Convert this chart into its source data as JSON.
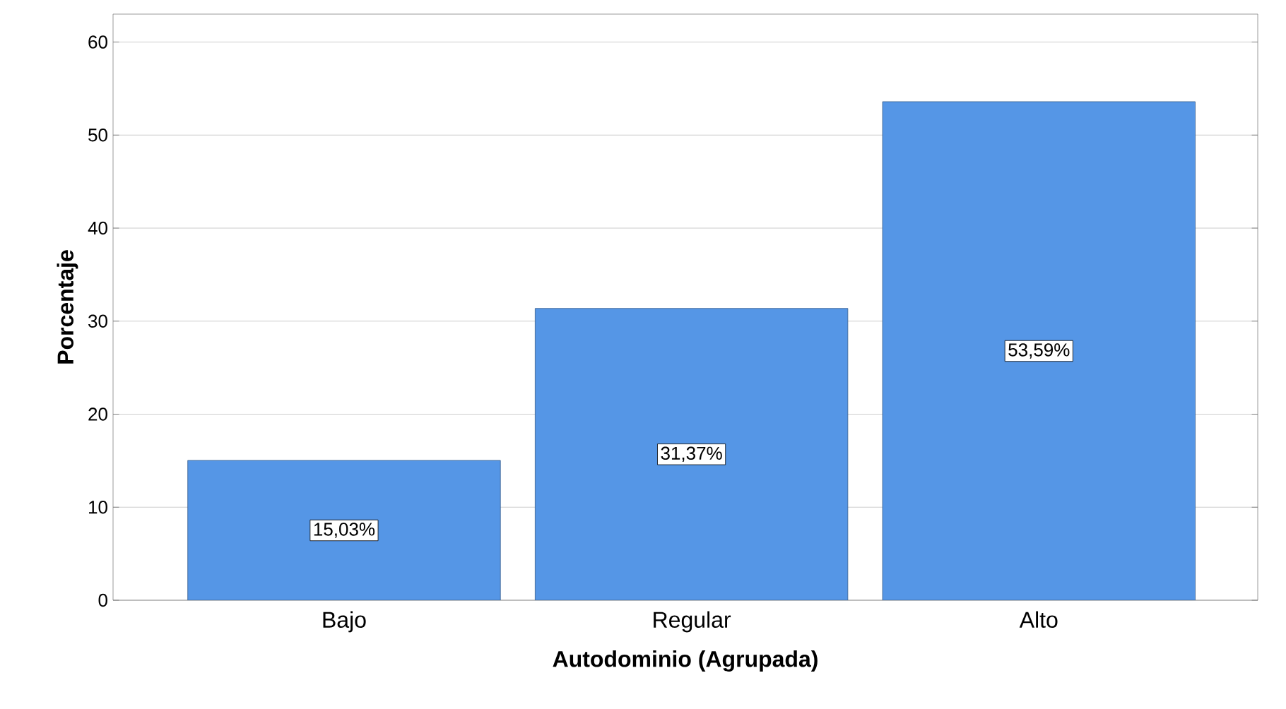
{
  "chart_data": {
    "type": "bar",
    "xlabel": "Autodominio (Agrupada)",
    "ylabel": "Porcentaje",
    "categories": [
      "Bajo",
      "Regular",
      "Alto"
    ],
    "values": [
      15.03,
      31.37,
      53.59
    ],
    "value_labels": [
      "15,03%",
      "31,37%",
      "53,59%"
    ],
    "color": "#5596e6",
    "ylim": [
      0,
      63
    ],
    "yticks": [
      0,
      10,
      20,
      30,
      40,
      50,
      60
    ],
    "grid": "y"
  }
}
